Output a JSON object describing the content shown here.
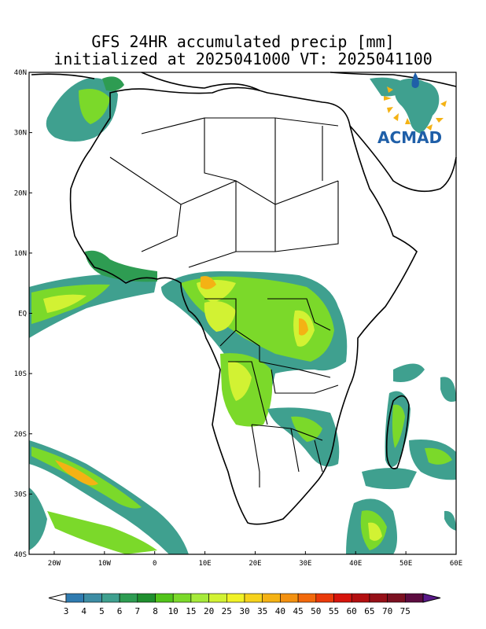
{
  "title": {
    "line1": "GFS 24HR accumulated precip [mm]",
    "line2": "initialized at 2025041000 VT: 2025041100"
  },
  "logo": {
    "text": "ACMAD"
  },
  "axes": {
    "lat_labels": [
      "40N",
      "30N",
      "20N",
      "10N",
      "EQ",
      "10S",
      "20S",
      "30S",
      "40S"
    ],
    "lon_labels": [
      "20W",
      "10W",
      "0",
      "10E",
      "20E",
      "30E",
      "40E",
      "50E",
      "60E"
    ],
    "lat_range": [
      -40,
      40
    ],
    "lon_range": [
      -25,
      60
    ]
  },
  "colorbar": {
    "labels": [
      "3",
      "4",
      "5",
      "6",
      "7",
      "8",
      "10",
      "15",
      "20",
      "25",
      "30",
      "35",
      "40",
      "45",
      "50",
      "55",
      "60",
      "65",
      "70",
      "75"
    ],
    "colors": [
      "#2f7bb0",
      "#3d8da4",
      "#3fa08f",
      "#2e9c52",
      "#1f8f2e",
      "#52c41a",
      "#7bd92a",
      "#a6ea3a",
      "#d2f233",
      "#f1f226",
      "#f6d21c",
      "#f4b214",
      "#f39110",
      "#f2690c",
      "#ea3a0a",
      "#d6140c",
      "#b30f10",
      "#961018",
      "#7b1020",
      "#5c0c40"
    ],
    "end_low": "#ffffff",
    "end_high": "#5a1a8a"
  },
  "precip_colors": {
    "light": "#2f7bb0",
    "teal": "#3fa08f",
    "green": "#2e9c52",
    "bright_green": "#7bd92a",
    "yellow_green": "#d2f233",
    "yellow": "#f1f226",
    "orange": "#f4b214",
    "red": "#ea3a0a"
  }
}
